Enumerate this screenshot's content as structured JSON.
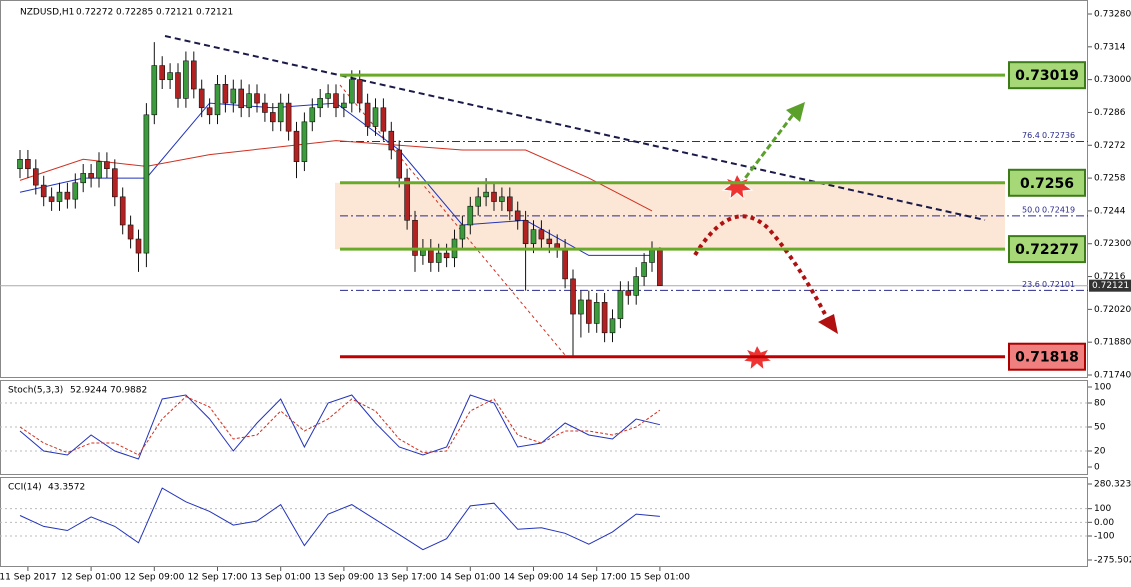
{
  "chart_data": [
    {
      "type": "candlestick",
      "symbol": "NZDUSD,H1",
      "ohlc": [
        0.72272,
        0.72285,
        0.72121,
        0.72121
      ],
      "up_color": "#3c9b3c",
      "down_color": "#b22222",
      "categories": [
        null,
        "11 Sep 2017",
        null,
        null,
        null,
        null,
        null,
        null,
        null,
        "12 Sep 01:00",
        null,
        null,
        null,
        null,
        null,
        null,
        null,
        "12 Sep 09:00",
        null,
        null,
        null,
        null,
        null,
        null,
        null,
        "12 Sep 17:00",
        null,
        null,
        null,
        null,
        null,
        null,
        null,
        "13 Sep 01:00",
        null,
        null,
        null,
        null,
        null,
        null,
        null,
        "13 Sep 09:00",
        null,
        null,
        null,
        null,
        null,
        null,
        null,
        "13 Sep 17:00",
        null,
        null,
        null,
        null,
        null,
        null,
        null,
        "14 Sep 01:00",
        null,
        null,
        null,
        null,
        null,
        null,
        null,
        "14 Sep 09:00",
        null,
        null,
        null,
        null,
        null,
        null,
        null,
        "14 Sep 17:00",
        null,
        null,
        null,
        null,
        null,
        null,
        null,
        "15 Sep 01:00"
      ],
      "open": [
        0.7262,
        0.7266,
        0.7262,
        0.7255,
        0.725,
        0.7248,
        0.7252,
        0.7249,
        0.7256,
        0.726,
        0.7258,
        0.7265,
        0.7262,
        0.725,
        0.7238,
        0.7232,
        0.7226,
        0.7285,
        0.7306,
        0.73,
        0.7303,
        0.7292,
        0.7308,
        0.7296,
        0.7288,
        0.7285,
        0.7298,
        0.729,
        0.7296,
        0.7288,
        0.7294,
        0.729,
        0.7286,
        0.7282,
        0.729,
        0.7278,
        0.7265,
        0.7282,
        0.7288,
        0.7292,
        0.7294,
        0.7288,
        0.729,
        0.73,
        0.729,
        0.728,
        0.7288,
        0.7278,
        0.727,
        0.7258,
        0.724,
        0.7225,
        0.7228,
        0.7222,
        0.7226,
        0.7224,
        0.7232,
        0.7238,
        0.7246,
        0.725,
        0.7252,
        0.7248,
        0.725,
        0.7244,
        0.724,
        0.723,
        0.7236,
        0.7232,
        0.723,
        0.7228,
        0.7215,
        0.72,
        0.7206,
        0.7196,
        0.7205,
        0.7192,
        0.7198,
        0.721,
        0.7208,
        0.7216,
        0.7222,
        0.72272
      ],
      "high": [
        0.727,
        0.727,
        0.7266,
        0.7259,
        0.7254,
        0.7256,
        0.7256,
        0.726,
        0.7264,
        0.7264,
        0.7269,
        0.7269,
        0.7266,
        0.7254,
        0.7242,
        0.7236,
        0.729,
        0.7316,
        0.731,
        0.7307,
        0.7307,
        0.7312,
        0.7312,
        0.73,
        0.7292,
        0.7302,
        0.7302,
        0.73,
        0.73,
        0.7298,
        0.7298,
        0.7294,
        0.729,
        0.7294,
        0.7294,
        0.7282,
        0.7286,
        0.7292,
        0.7296,
        0.7298,
        0.7298,
        0.7294,
        0.7304,
        0.7304,
        0.7294,
        0.7292,
        0.7292,
        0.7282,
        0.7274,
        0.7262,
        0.7244,
        0.7232,
        0.7232,
        0.723,
        0.723,
        0.7236,
        0.7242,
        0.725,
        0.7254,
        0.7258,
        0.7256,
        0.7254,
        0.7254,
        0.7248,
        0.7244,
        0.724,
        0.724,
        0.7236,
        0.7234,
        0.7232,
        0.7219,
        0.721,
        0.721,
        0.7209,
        0.7209,
        0.7202,
        0.7214,
        0.7214,
        0.722,
        0.7226,
        0.7231,
        0.72285
      ],
      "low": [
        0.7258,
        0.7258,
        0.7251,
        0.7246,
        0.7244,
        0.7244,
        0.7245,
        0.7245,
        0.7252,
        0.7254,
        0.7254,
        0.7258,
        0.7246,
        0.7234,
        0.7228,
        0.7218,
        0.722,
        0.7281,
        0.7296,
        0.7296,
        0.7288,
        0.7288,
        0.7292,
        0.7284,
        0.7281,
        0.7281,
        0.7286,
        0.7286,
        0.7284,
        0.7284,
        0.7286,
        0.7282,
        0.7278,
        0.7278,
        0.7274,
        0.7258,
        0.7261,
        0.7278,
        0.7284,
        0.7288,
        0.7284,
        0.7284,
        0.7286,
        0.7286,
        0.7276,
        0.7276,
        0.7274,
        0.7266,
        0.7254,
        0.7236,
        0.7218,
        0.7221,
        0.7218,
        0.7218,
        0.722,
        0.722,
        0.7228,
        0.7234,
        0.7242,
        0.7246,
        0.7244,
        0.7244,
        0.724,
        0.7236,
        0.721,
        0.7226,
        0.7228,
        0.7226,
        0.7224,
        0.7211,
        0.7182,
        0.719,
        0.7192,
        0.7192,
        0.7188,
        0.7188,
        0.7194,
        0.7204,
        0.7204,
        0.7212,
        0.7218,
        0.72121
      ],
      "close": [
        0.7266,
        0.7262,
        0.7255,
        0.725,
        0.7248,
        0.7252,
        0.7249,
        0.7256,
        0.726,
        0.7258,
        0.7265,
        0.7262,
        0.725,
        0.7238,
        0.7232,
        0.7226,
        0.7285,
        0.7306,
        0.73,
        0.7303,
        0.7292,
        0.7308,
        0.7296,
        0.7288,
        0.7285,
        0.7298,
        0.729,
        0.7296,
        0.7288,
        0.7294,
        0.729,
        0.7286,
        0.7282,
        0.729,
        0.7278,
        0.7265,
        0.7282,
        0.7288,
        0.7292,
        0.7294,
        0.7288,
        0.729,
        0.73,
        0.729,
        0.728,
        0.7288,
        0.7278,
        0.727,
        0.7258,
        0.724,
        0.7225,
        0.7228,
        0.7222,
        0.7226,
        0.7224,
        0.7232,
        0.7238,
        0.7246,
        0.725,
        0.7252,
        0.7248,
        0.725,
        0.7244,
        0.724,
        0.723,
        0.7236,
        0.7232,
        0.723,
        0.7228,
        0.7215,
        0.72,
        0.7206,
        0.7196,
        0.7205,
        0.7192,
        0.7198,
        0.721,
        0.7208,
        0.7216,
        0.7222,
        0.72272,
        0.72121
      ],
      "moving_averages": [
        {
          "color": "#2233bb",
          "x": [
            0,
            8,
            16,
            24,
            32,
            40,
            48,
            56,
            64,
            72,
            80
          ],
          "values": [
            0.7252,
            0.7258,
            0.7258,
            0.729,
            0.7288,
            0.729,
            0.727,
            0.7238,
            0.724,
            0.7225,
            0.7225
          ]
        },
        {
          "color": "#d03020",
          "x": [
            0,
            8,
            16,
            24,
            32,
            40,
            48,
            56,
            64,
            72,
            80
          ],
          "values": [
            0.7257,
            0.7266,
            0.7263,
            0.7268,
            0.7271,
            0.7274,
            0.7272,
            0.727,
            0.727,
            0.7258,
            0.7244
          ]
        }
      ],
      "levels": [
        {
          "value": 0.73019,
          "color": "#6aaa2a",
          "box_color": "#a6d877"
        },
        {
          "value": 0.7256,
          "color": "#6aaa2a",
          "box_color": "#a6d877"
        },
        {
          "value": 0.72277,
          "color": "#6aaa2a",
          "box_color": "#a6d877"
        },
        {
          "value": 0.71818,
          "color": "#c00000",
          "box_color": "#f08080"
        }
      ],
      "fib_levels": [
        {
          "ratio": "76.4",
          "value": 0.72736
        },
        {
          "ratio": "50.0",
          "value": 0.72419
        },
        {
          "ratio": "23.6",
          "value": 0.72101
        }
      ],
      "ylim": [
        0.7174,
        0.7328
      ],
      "yticks": [
        {
          "value": 0.7328,
          "label": "0.73280"
        },
        0.7314,
        {
          "value": 0.73,
          "label": "0.73000"
        },
        0.7286,
        0.7272,
        0.7258,
        0.7244,
        {
          "value": 0.723,
          "label": "0.72300"
        },
        0.7216,
        {
          "value": 0.7202,
          "label": "0.72020"
        },
        {
          "value": 0.7188,
          "label": "0.71880"
        },
        {
          "value": 0.7174,
          "label": "0.71740"
        }
      ]
    },
    {
      "type": "line",
      "title": "Stoch(5,3,3)",
      "x": [
        0,
        3,
        6,
        9,
        12,
        15,
        18,
        21,
        24,
        27,
        30,
        33,
        36,
        39,
        42,
        45,
        48,
        51,
        54,
        57,
        60,
        63,
        66,
        69,
        72,
        75,
        78,
        81
      ],
      "series": [
        {
          "color": "#2233bb",
          "values": [
            45,
            20,
            15,
            40,
            20,
            10,
            85,
            90,
            60,
            20,
            55,
            85,
            25,
            80,
            90,
            55,
            25,
            15,
            25,
            90,
            80,
            25,
            30,
            55,
            40,
            35,
            60,
            52.9244
          ]
        },
        {
          "color": "#d03020",
          "dashed": true,
          "values": [
            50,
            30,
            18,
            30,
            30,
            15,
            60,
            88,
            75,
            35,
            40,
            70,
            45,
            60,
            85,
            70,
            35,
            18,
            20,
            70,
            85,
            40,
            30,
            45,
            45,
            40,
            50,
            70.9882
          ]
        }
      ],
      "ylim": [
        0,
        100
      ],
      "yticks": [
        100,
        80,
        50,
        20,
        0
      ]
    },
    {
      "type": "line",
      "title": "CCI(14)",
      "x": [
        0,
        3,
        6,
        9,
        12,
        15,
        18,
        21,
        24,
        27,
        30,
        33,
        36,
        39,
        42,
        45,
        48,
        51,
        54,
        57,
        60,
        63,
        66,
        69,
        72,
        75,
        78,
        81
      ],
      "series": [
        {
          "color": "#2233bb",
          "values": [
            50,
            -30,
            -60,
            40,
            -30,
            -150,
            250,
            150,
            80,
            -20,
            10,
            130,
            -170,
            60,
            130,
            20,
            -90,
            -200,
            -120,
            120,
            140,
            -50,
            -40,
            -80,
            -160,
            -70,
            60,
            43.3572
          ]
        }
      ],
      "ylim": [
        -275.5023,
        280.323
      ],
      "yticks": [
        280.323,
        100,
        {
          "value": 0,
          "label": "0.00"
        },
        -100,
        -275.5023
      ]
    }
  ]
}
